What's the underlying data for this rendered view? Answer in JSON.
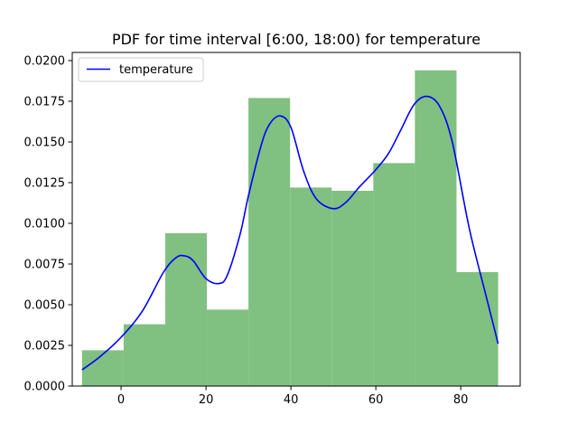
{
  "chart_data": {
    "type": "bar",
    "title": "PDF for time interval [6:00, 18:00) for temperature",
    "xlabel": "",
    "ylabel": "",
    "xlim": [
      -11.5,
      94
    ],
    "ylim": [
      0,
      0.0205
    ],
    "x_ticks": [
      0,
      20,
      40,
      60,
      80
    ],
    "x_tick_labels": [
      "0",
      "20",
      "40",
      "60",
      "80"
    ],
    "y_ticks": [
      0,
      0.0025,
      0.005,
      0.0075,
      0.01,
      0.0125,
      0.015,
      0.0175,
      0.02
    ],
    "y_tick_labels": [
      "0.0000",
      "0.0025",
      "0.0050",
      "0.0075",
      "0.0100",
      "0.0125",
      "0.0150",
      "0.0175",
      "0.0200"
    ],
    "grid": false,
    "legend": {
      "position": "top-left",
      "entries": [
        "temperature"
      ]
    },
    "histogram": {
      "color": "#80c080",
      "bin_edges": [
        -9.2,
        0.6,
        10.4,
        20.2,
        30.0,
        39.8,
        49.6,
        59.4,
        69.2,
        79.0,
        88.8
      ],
      "values": [
        0.0022,
        0.0038,
        0.0094,
        0.0047,
        0.0177,
        0.0122,
        0.012,
        0.0137,
        0.0194,
        0.007
      ]
    },
    "series": [
      {
        "name": "temperature",
        "type": "line",
        "color": "#0000ff",
        "x": [
          -9.2,
          -5,
          0,
          5,
          10,
          13,
          15,
          17,
          20,
          23,
          25,
          28,
          30,
          33,
          35,
          37.5,
          40,
          43,
          46,
          50,
          53,
          56,
          60,
          63,
          66,
          69,
          72,
          75,
          78,
          82,
          86,
          88.8
        ],
        "y": [
          0.001,
          0.0018,
          0.003,
          0.0046,
          0.007,
          0.0079,
          0.008,
          0.0077,
          0.0066,
          0.0063,
          0.0068,
          0.0093,
          0.0117,
          0.0148,
          0.0161,
          0.0166,
          0.0159,
          0.0132,
          0.0115,
          0.0109,
          0.0113,
          0.0122,
          0.0133,
          0.0143,
          0.0158,
          0.0173,
          0.0178,
          0.0172,
          0.015,
          0.0097,
          0.0055,
          0.0026
        ]
      }
    ]
  }
}
